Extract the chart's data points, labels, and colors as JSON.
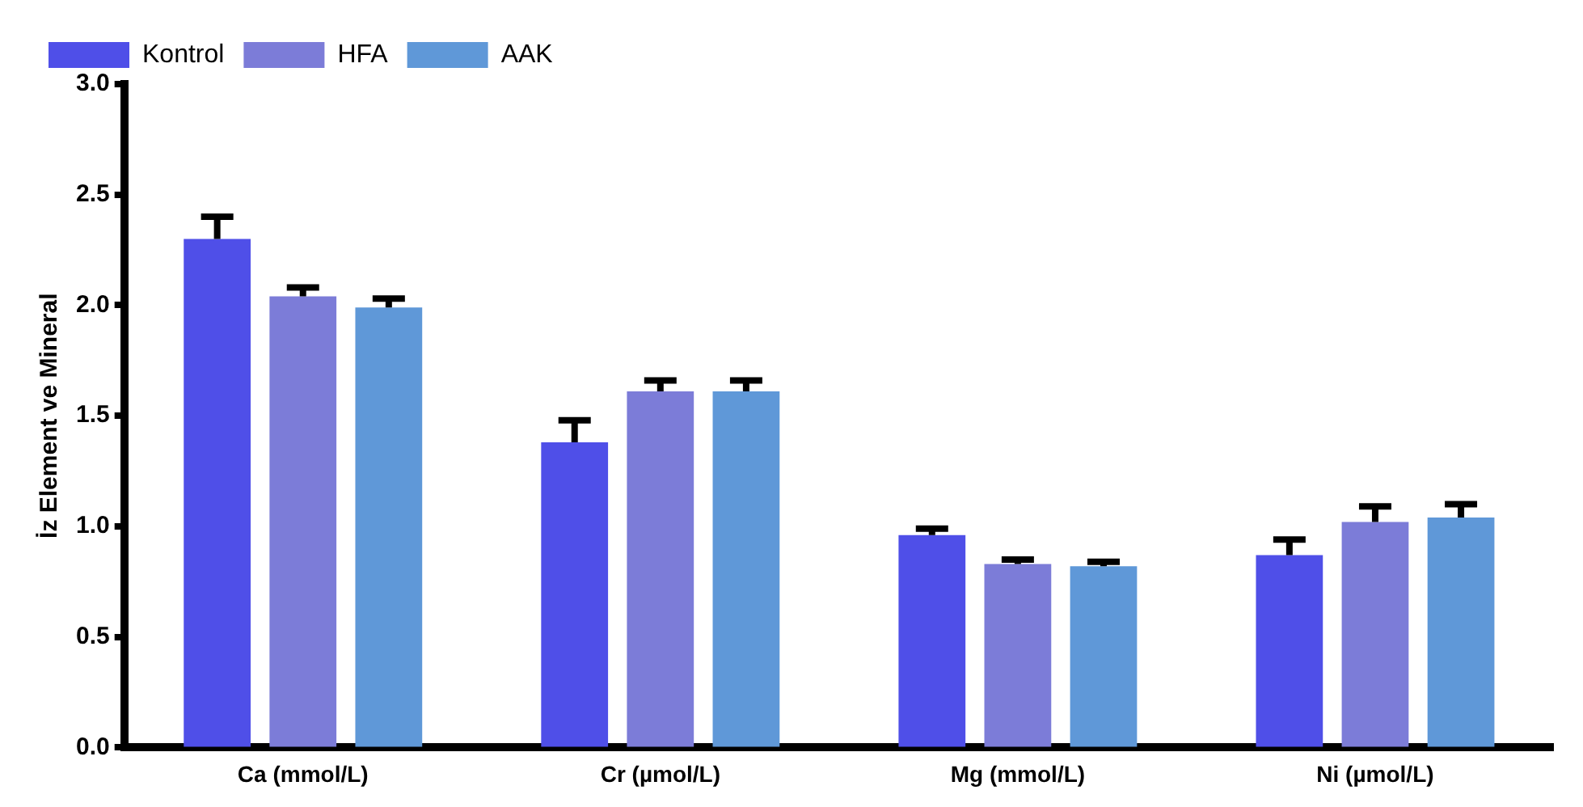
{
  "chart_data": {
    "type": "bar",
    "ylabel": "İz Element ve Mineral",
    "categories": [
      "Ca (mmol/L)",
      "Cr (µmol/L)",
      "Mg (mmol/L)",
      "Ni (µmol/L)"
    ],
    "series": [
      {
        "name": "Kontrol",
        "color": "#4f4fe8",
        "values": [
          2.3,
          1.38,
          0.96,
          0.87
        ],
        "errors": [
          [
            2.3,
            2.4
          ],
          [
            1.38,
            1.48
          ],
          [
            0.96,
            0.99
          ],
          [
            0.87,
            0.94
          ]
        ]
      },
      {
        "name": "HFA",
        "color": "#7c7cd8",
        "values": [
          2.04,
          1.61,
          0.83,
          1.02
        ],
        "errors": [
          [
            2.04,
            2.08
          ],
          [
            1.61,
            1.66
          ],
          [
            0.83,
            0.85
          ],
          [
            1.02,
            1.09
          ]
        ]
      },
      {
        "name": "AAK",
        "color": "#5f98d8",
        "values": [
          1.99,
          1.61,
          0.82,
          1.04
        ],
        "errors": [
          [
            1.99,
            2.03
          ],
          [
            1.61,
            1.66
          ],
          [
            0.82,
            0.84
          ],
          [
            1.04,
            1.1
          ]
        ]
      }
    ],
    "ylim": [
      0,
      3
    ],
    "yticks": [
      {
        "value": 0,
        "label": "0.0"
      },
      0.5,
      {
        "value": 1,
        "label": "1.0"
      },
      1.5,
      {
        "value": 2,
        "label": "2.0"
      },
      2.5,
      {
        "value": 3,
        "label": "3.0"
      }
    ],
    "grid": false,
    "legend": "top left"
  }
}
